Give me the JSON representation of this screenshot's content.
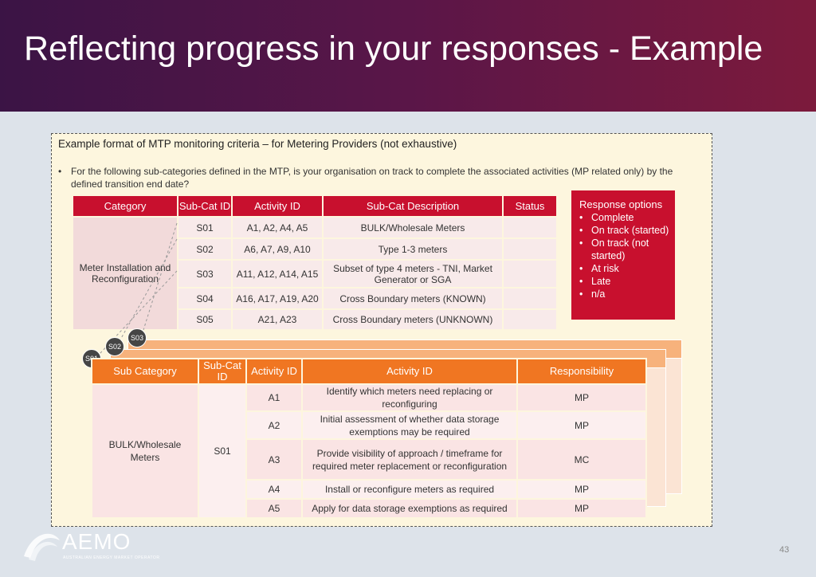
{
  "slide": {
    "title": "Reflecting progress in your responses - Example",
    "page_number": "43"
  },
  "box": {
    "heading": "Example format of MTP monitoring criteria – for Metering Providers (not exhaustive)",
    "bullet": "For the following sub-categories defined in the MTP, is your organisation on track to complete the associated activities (MP related only) by the defined transition end date?"
  },
  "table1": {
    "headers": [
      "Category",
      "Sub-Cat ID",
      "Activity ID",
      "Sub-Cat Description",
      "Status"
    ],
    "category": "Meter Installation and Reconfiguration",
    "rows": [
      {
        "subcat": "S01",
        "activity": "A1, A2, A4, A5",
        "desc": "BULK/Wholesale Meters",
        "status": ""
      },
      {
        "subcat": "S02",
        "activity": "A6, A7, A9, A10",
        "desc": "Type 1-3 meters",
        "status": ""
      },
      {
        "subcat": "S03",
        "activity": "A11, A12, A14, A15",
        "desc": "Subset of type 4 meters - TNI, Market Generator or SGA",
        "status": ""
      },
      {
        "subcat": "S04",
        "activity": "A16, A17, A19, A20",
        "desc": "Cross Boundary meters (KNOWN)",
        "status": ""
      },
      {
        "subcat": "S05",
        "activity": "A21, A23",
        "desc": "Cross Boundary meters (UNKNOWN)",
        "status": ""
      }
    ]
  },
  "response_options": {
    "title": "Response options",
    "items": [
      "Complete",
      "On track (started)",
      "On track (not started)",
      "At risk",
      "Late",
      "n/a"
    ]
  },
  "stack_labels": [
    "S03",
    "S02",
    "S01"
  ],
  "table2": {
    "headers": [
      "Sub Category",
      "Sub-Cat ID",
      "Activity ID",
      "Activity ID",
      "Responsibility"
    ],
    "subcategory": "BULK/Wholesale Meters",
    "subcat_id": "S01",
    "rows": [
      {
        "activity_id": "A1",
        "activity": "Identify which meters need replacing or reconfiguring",
        "resp": "MP"
      },
      {
        "activity_id": "A2",
        "activity": "Initial assessment of whether data storage exemptions may be required",
        "resp": "MP"
      },
      {
        "activity_id": "A3",
        "activity": "Provide visibility of approach / timeframe for required meter replacement or reconfiguration",
        "resp": "MC"
      },
      {
        "activity_id": "A4",
        "activity": "Install or reconfigure meters as required",
        "resp": "MP"
      },
      {
        "activity_id": "A5",
        "activity": "Apply for data storage exemptions as required",
        "resp": "MP"
      }
    ]
  },
  "logo": {
    "name": "AEMO",
    "tagline": "AUSTRALIAN ENERGY MARKET OPERATOR"
  },
  "colors": {
    "header_start": "#3b1445",
    "header_end": "#7c1a3c",
    "table1_header": "#c8102e",
    "table2_header": "#f07622"
  }
}
